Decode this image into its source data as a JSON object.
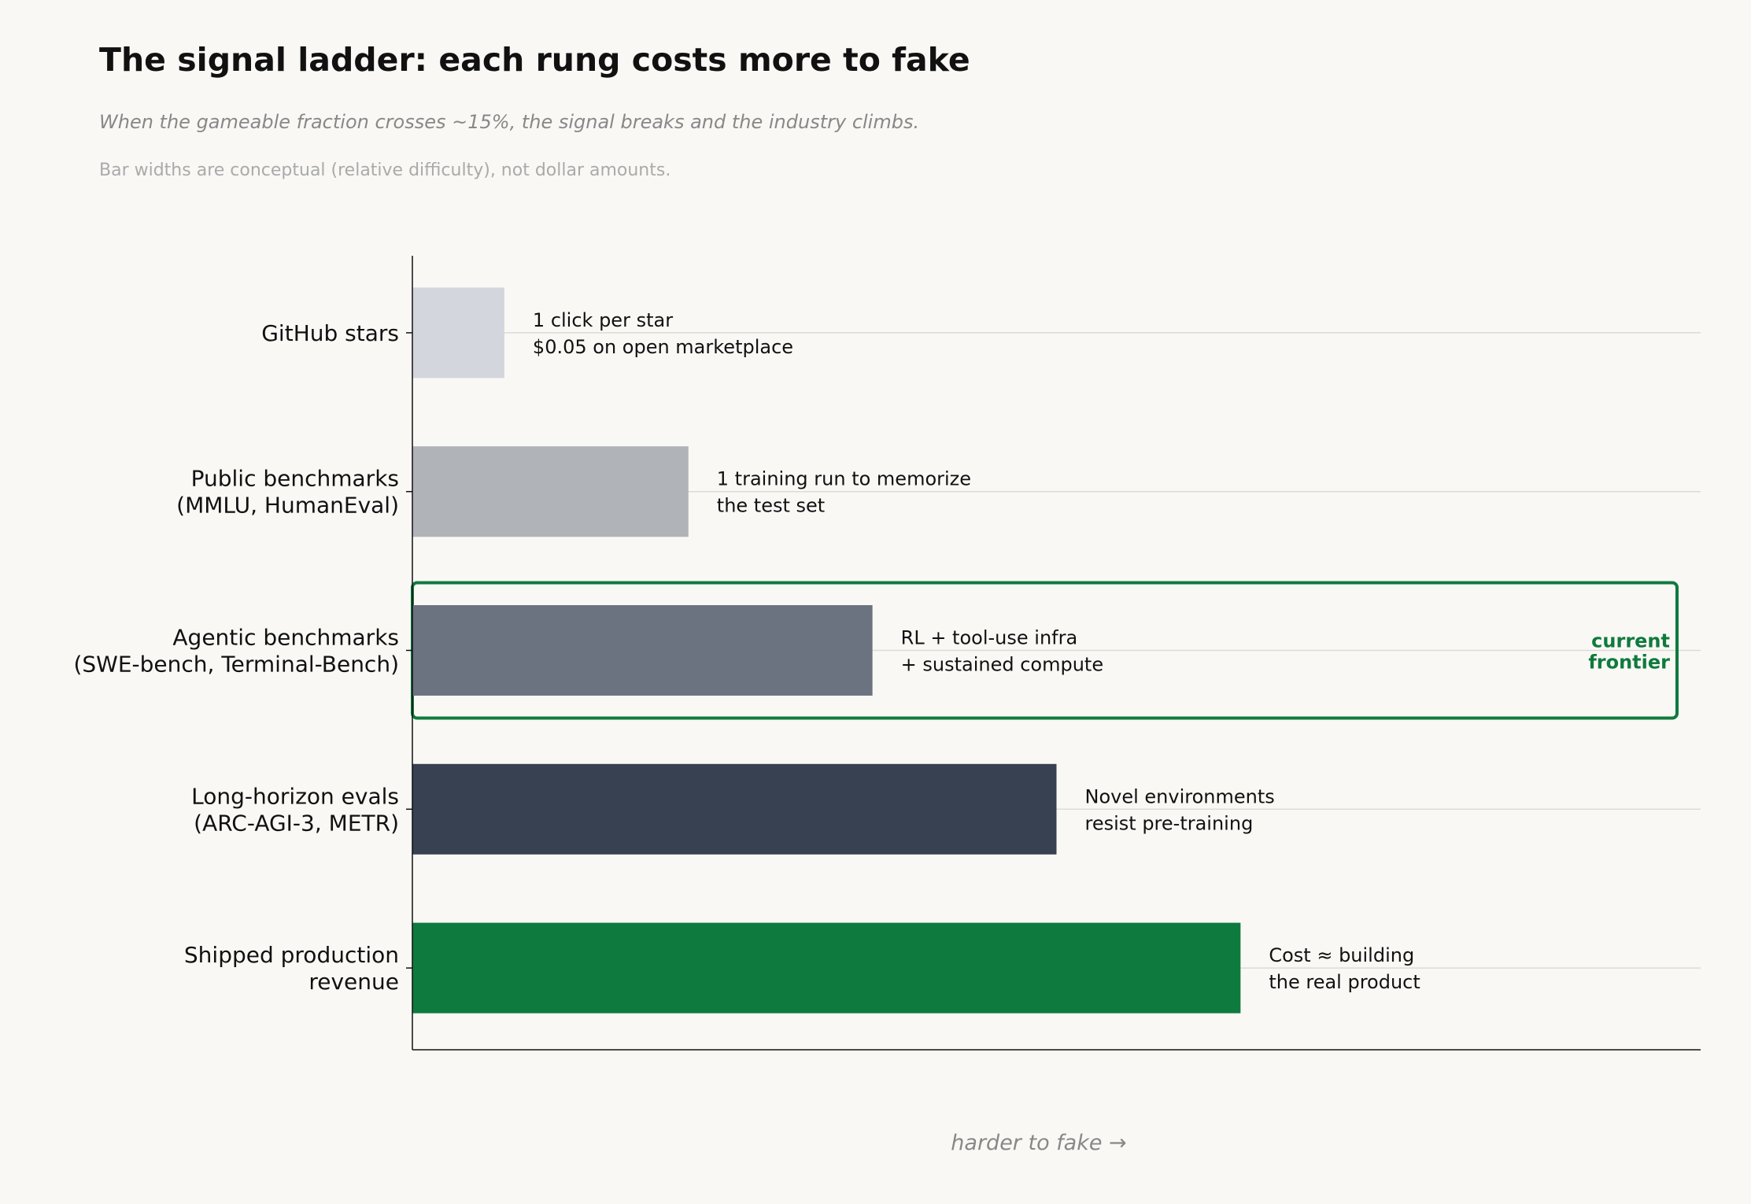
{
  "title": "The signal ladder: each rung costs more to fake",
  "subtitle": "When the gameable fraction crosses ~15%, the signal breaks and the industry climbs.",
  "note": "Bar widths are conceptual (relative difficulty), not dollar amounts.",
  "chart_data": {
    "type": "bar",
    "orientation": "horizontal",
    "title": "The signal ladder: each rung costs more to fake",
    "xlabel": "harder to fake →",
    "ylabel": "",
    "xlim": [
      0,
      7
    ],
    "grid": "horizontal lines at each bar",
    "categories": [
      [
        "GitHub stars"
      ],
      [
        "Public benchmarks",
        "(MMLU, HumanEval)"
      ],
      [
        "Agentic benchmarks",
        "(SWE-bench, Terminal-Bench)"
      ],
      [
        "Long-horizon evals",
        "(ARC-AGI-3, METR)"
      ],
      [
        "Shipped production",
        "revenue"
      ]
    ],
    "values": [
      0.5,
      1.5,
      2.5,
      3.5,
      4.5
    ],
    "colors": [
      "#d4d6de",
      "#b0b3b8",
      "#6b7280",
      "#374151",
      "#0f7a3d"
    ],
    "annotations": [
      [
        "1 click per star",
        "$0.05 on open marketplace"
      ],
      [
        "1 training run to memorize",
        "the test set"
      ],
      [
        "RL + tool-use infra",
        "+ sustained compute"
      ],
      [
        "Novel environments",
        "resist pre-training"
      ],
      [
        "Cost ≈ building",
        "the real product"
      ]
    ],
    "highlight": {
      "category_index": 2,
      "label": [
        "current",
        "frontier"
      ],
      "color": "#0f7a3d"
    }
  }
}
